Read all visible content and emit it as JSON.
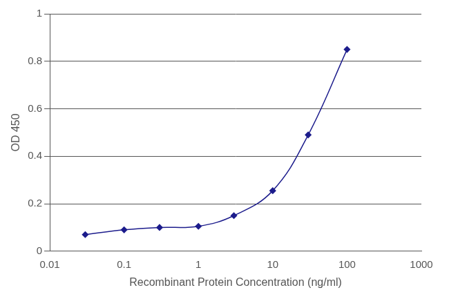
{
  "chart_data": {
    "type": "line",
    "x_label": "Recombinant Protein Concentration (ng/ml)",
    "y_label": "OD 450",
    "x": [
      0.03,
      0.1,
      0.3,
      1,
      3,
      10,
      30,
      100
    ],
    "values": [
      0.07,
      0.09,
      0.1,
      0.105,
      0.15,
      0.255,
      0.49,
      0.85
    ],
    "color": "#1c1c8c",
    "marker": "diamond",
    "line_style": "smooth",
    "log": "x",
    "xlim": [
      0.01,
      1000
    ],
    "xticks": [
      0.01,
      0.1,
      1,
      10,
      100,
      1000
    ],
    "ylim": [
      0,
      1
    ],
    "yticks": [
      0,
      0.2,
      0.4,
      0.6,
      0.8,
      1
    ],
    "grid": "y"
  }
}
